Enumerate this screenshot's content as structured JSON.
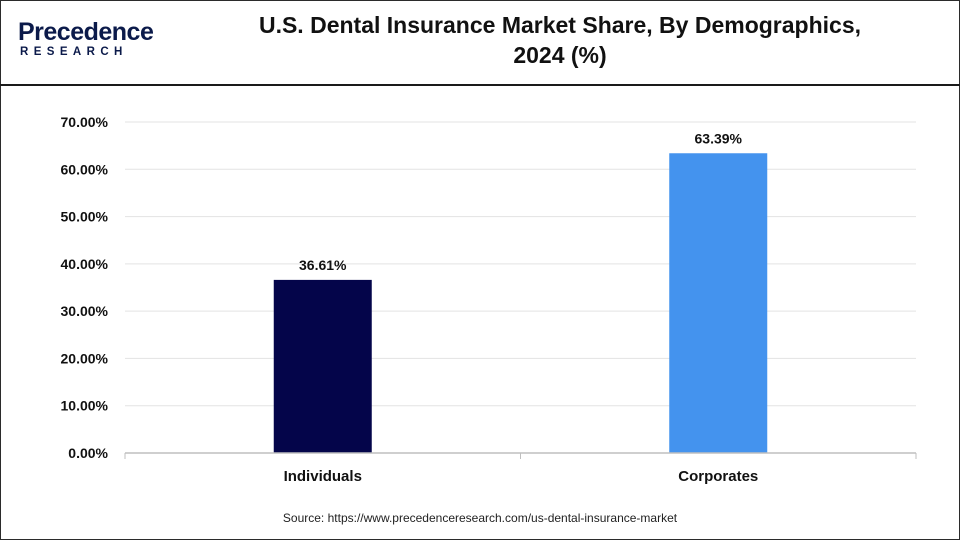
{
  "logo": {
    "main": "Precedence",
    "sub": "RESEARCH"
  },
  "source": "Source: https://www.precedenceresearch.com/us-dental-insurance-market",
  "chart_data": {
    "type": "bar",
    "title": "U.S. Dental Insurance Market Share, By Demographics,\n2024 (%)",
    "categories": [
      "Individuals",
      "Corporates"
    ],
    "values": [
      36.61,
      63.39
    ],
    "data_labels": [
      "36.61%",
      "63.39%"
    ],
    "colors": [
      "#04054a",
      "#4493ee"
    ],
    "ylim": [
      0,
      70
    ],
    "yticks": [
      0,
      10,
      20,
      30,
      40,
      50,
      60,
      70
    ],
    "ytick_labels": [
      "0.00%",
      "10.00%",
      "20.00%",
      "30.00%",
      "40.00%",
      "50.00%",
      "60.00%",
      "70.00%"
    ],
    "grid": true,
    "legend": "none"
  }
}
